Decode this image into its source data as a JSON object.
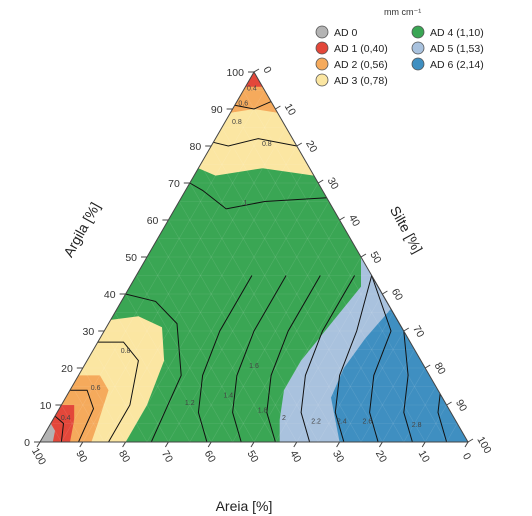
{
  "chart_data": {
    "type": "ternary_contour",
    "axes": {
      "left": {
        "label": "Argila [%]",
        "ticks": [
          "0",
          "10",
          "20",
          "30",
          "40",
          "50",
          "60",
          "70",
          "80",
          "90",
          "100"
        ]
      },
      "right": {
        "label": "Silte [%]",
        "ticks": [
          "0",
          "10",
          "20",
          "30",
          "40",
          "50",
          "60",
          "70",
          "80",
          "90",
          "100"
        ]
      },
      "bottom": {
        "label": "Areia [%]",
        "ticks": [
          "100",
          "90",
          "80",
          "70",
          "60",
          "50",
          "40",
          "30",
          "20",
          "10",
          "0"
        ]
      }
    },
    "legend": {
      "title": "mm cm⁻¹",
      "placement": "top-right",
      "entries": [
        {
          "label": "AD 0",
          "color": "#b3b3b3"
        },
        {
          "label": "AD 1 (0,40)",
          "color": "#e3473a"
        },
        {
          "label": "AD 2 (0,56)",
          "color": "#f5aa5c"
        },
        {
          "label": "AD 3 (0,78)",
          "color": "#fbe6a2"
        },
        {
          "label": "AD 4 (1,10)",
          "color": "#3aa654"
        },
        {
          "label": "AD 5 (1,53)",
          "color": "#a9c2de"
        },
        {
          "label": "AD 6 (2,14)",
          "color": "#3f8fc1"
        }
      ]
    },
    "contour_labels": [
      "0.8",
      "0.6",
      "0.4",
      "0.8",
      "1",
      "0.8",
      "0.6",
      "0.4",
      "1.2",
      "1.4",
      "1.6",
      "1.8",
      "2",
      "2.2",
      "2.4",
      "2.6",
      "2.8"
    ]
  }
}
